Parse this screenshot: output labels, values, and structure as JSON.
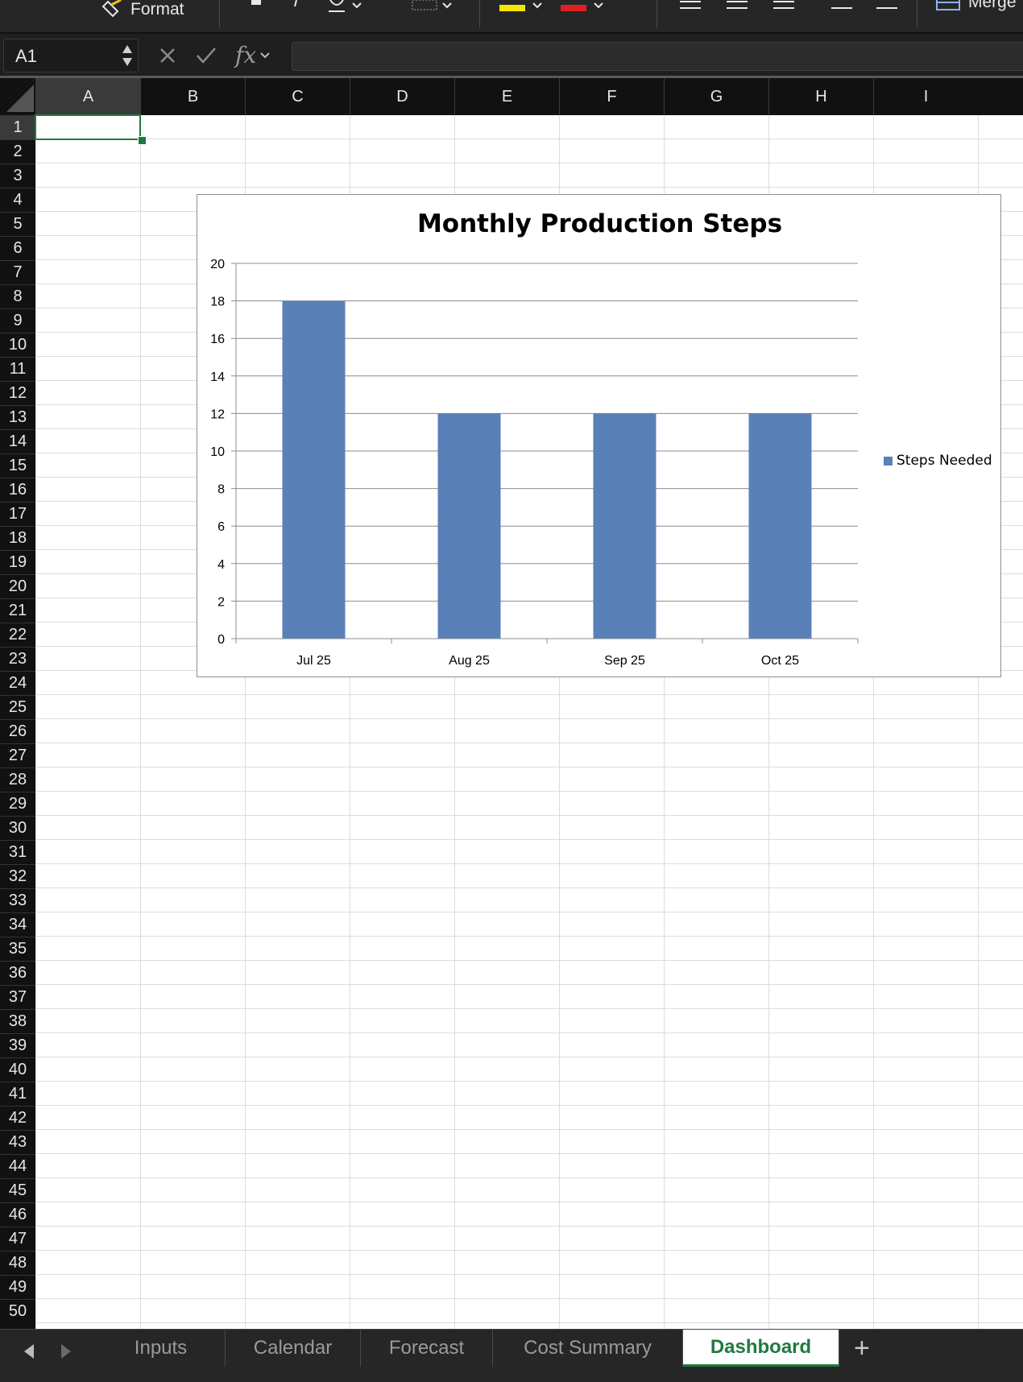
{
  "ribbon": {
    "format_label": "Format",
    "merge_label": "Merge"
  },
  "formula_bar": {
    "name_box": "A1",
    "fx_label": "fx",
    "formula": ""
  },
  "columns": [
    "A",
    "B",
    "C",
    "D",
    "E",
    "F",
    "G",
    "H",
    "I"
  ],
  "rows": [
    "1",
    "2",
    "3",
    "4",
    "5",
    "6",
    "7",
    "8",
    "9",
    "10",
    "11",
    "12",
    "13",
    "14",
    "15",
    "16",
    "17",
    "18",
    "19",
    "20",
    "21",
    "22",
    "23",
    "24",
    "25",
    "26",
    "27",
    "28",
    "29",
    "30",
    "31",
    "32",
    "33",
    "34",
    "35",
    "36",
    "37",
    "38",
    "39",
    "40",
    "41",
    "42",
    "43",
    "44",
    "45",
    "46",
    "47",
    "48",
    "49",
    "50"
  ],
  "selected_cell": "A1",
  "chart_data": {
    "type": "bar",
    "title": "Monthly Production Steps",
    "categories": [
      "Jul 25",
      "Aug 25",
      "Sep 25",
      "Oct 25"
    ],
    "series": [
      {
        "name": "Steps Needed",
        "values": [
          18,
          12,
          12,
          12
        ],
        "color": "#5a80b8"
      }
    ],
    "ylim": [
      0,
      20
    ],
    "yticks": [
      0,
      2,
      4,
      6,
      8,
      10,
      12,
      14,
      16,
      18,
      20
    ],
    "xlabel": "",
    "ylabel": "",
    "grid": true,
    "legend_position": "right"
  },
  "sheet_tabs": [
    {
      "label": "Inputs",
      "active": false
    },
    {
      "label": "Calendar",
      "active": false
    },
    {
      "label": "Forecast",
      "active": false
    },
    {
      "label": "Cost Summary",
      "active": false
    },
    {
      "label": "Dashboard",
      "active": true
    }
  ],
  "add_sheet_label": "+",
  "colors": {
    "accent": "#1f7a3e",
    "bar": "#5a80b8"
  }
}
